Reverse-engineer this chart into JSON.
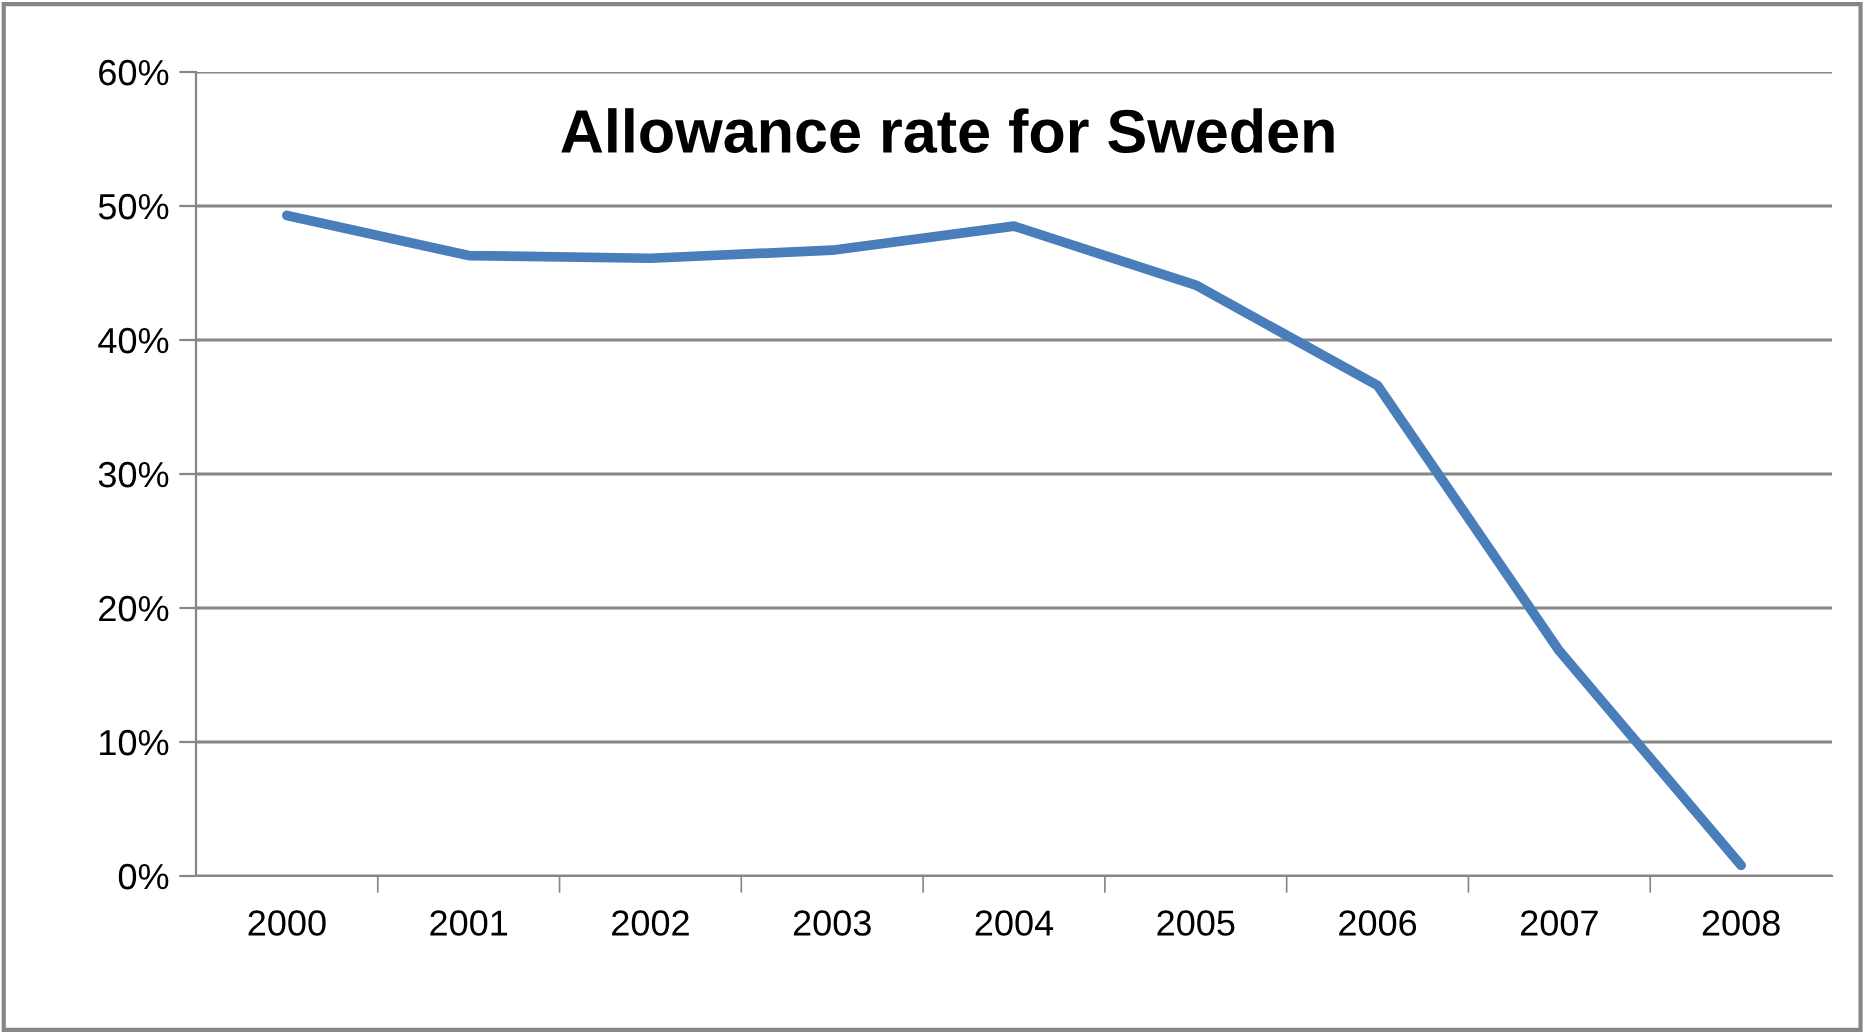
{
  "chart_data": {
    "type": "line",
    "title": "Allowance rate for Sweden",
    "categories": [
      "2000",
      "2001",
      "2002",
      "2003",
      "2004",
      "2005",
      "2006",
      "2007",
      "2008"
    ],
    "series": [
      {
        "color": "#4a7ebb",
        "values": [
          49.3,
          46.3,
          46.1,
          46.7,
          48.5,
          44.1,
          36.6,
          16.8,
          0.8
        ]
      }
    ],
    "ylim": [
      0,
      60
    ],
    "yticks": [
      {
        "value": 0,
        "label": "0%"
      },
      {
        "value": 10,
        "label": "10%"
      },
      {
        "value": 20,
        "label": "20%"
      },
      {
        "value": 30,
        "label": "30%"
      },
      {
        "value": 40,
        "label": "40%"
      },
      {
        "value": 50,
        "label": "50%"
      },
      {
        "value": 60,
        "label": "60%"
      }
    ],
    "grid": "y",
    "legend": false,
    "marker": "none",
    "line_style": "solid"
  }
}
